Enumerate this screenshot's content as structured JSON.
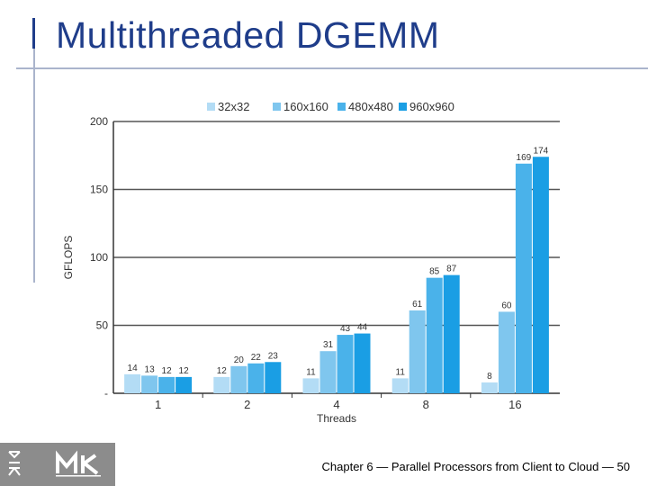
{
  "slide": {
    "title": "Multithreaded DGEMM",
    "footer": "Chapter 6 — Parallel Processors from Client to Cloud — 50"
  },
  "colors": {
    "title": "#1f3d8a",
    "accent_line": "#aab4cc",
    "logo_bg": "#8c8c8c"
  },
  "chart_data": {
    "type": "bar",
    "xlabel": "Threads",
    "ylabel": "GFLOPS",
    "ylim": [
      0,
      200
    ],
    "yticks": [
      0,
      50,
      100,
      150,
      200
    ],
    "ytick_labels": [
      "-",
      "50",
      "100",
      "150",
      "200"
    ],
    "grid": true,
    "legend_position": "top",
    "categories": [
      "1",
      "2",
      "4",
      "8",
      "16"
    ],
    "series": [
      {
        "name": "32x32",
        "color": "#b3dcf5",
        "values": [
          14,
          12,
          11,
          11,
          8
        ]
      },
      {
        "name": "160x160",
        "color": "#7fc6ee",
        "values": [
          13,
          20,
          31,
          61,
          60
        ]
      },
      {
        "name": "480x480",
        "color": "#4ab2ea",
        "values": [
          12,
          22,
          43,
          85,
          169
        ]
      },
      {
        "name": "960x960",
        "color": "#1a9ee4",
        "values": [
          12,
          23,
          44,
          87,
          174
        ]
      }
    ]
  }
}
